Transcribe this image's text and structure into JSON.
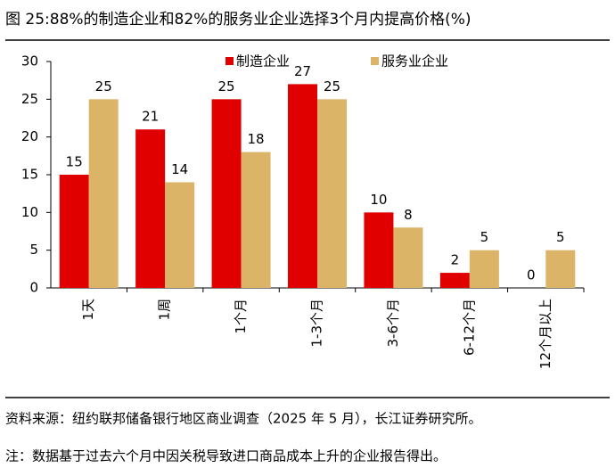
{
  "chart_data": {
    "type": "bar",
    "title": "图 25:88%的制造企业和82%的服务业企业选择3个月内提高价格(%)",
    "categories": [
      "1天",
      "1周",
      "1个月",
      "1-3个月",
      "3-6个月",
      "6-12个月",
      "12个月以上"
    ],
    "series": [
      {
        "name": "制造企业",
        "color": "#e00000",
        "values": [
          15,
          21,
          25,
          27,
          10,
          2,
          0
        ]
      },
      {
        "name": "服务业企业",
        "color": "#dbb468",
        "values": [
          25,
          14,
          18,
          25,
          8,
          5,
          5
        ]
      }
    ],
    "ylim": [
      0,
      30
    ],
    "yticks": [
      0,
      5,
      10,
      15,
      20,
      25,
      30
    ],
    "source": "资料来源：纽约联邦储备银行地区商业调查（2025 年 5 月），长江证券研究所。",
    "note": "注：数据基于过去六个月中因关税导致进口商品成本上升的企业报告得出。"
  }
}
